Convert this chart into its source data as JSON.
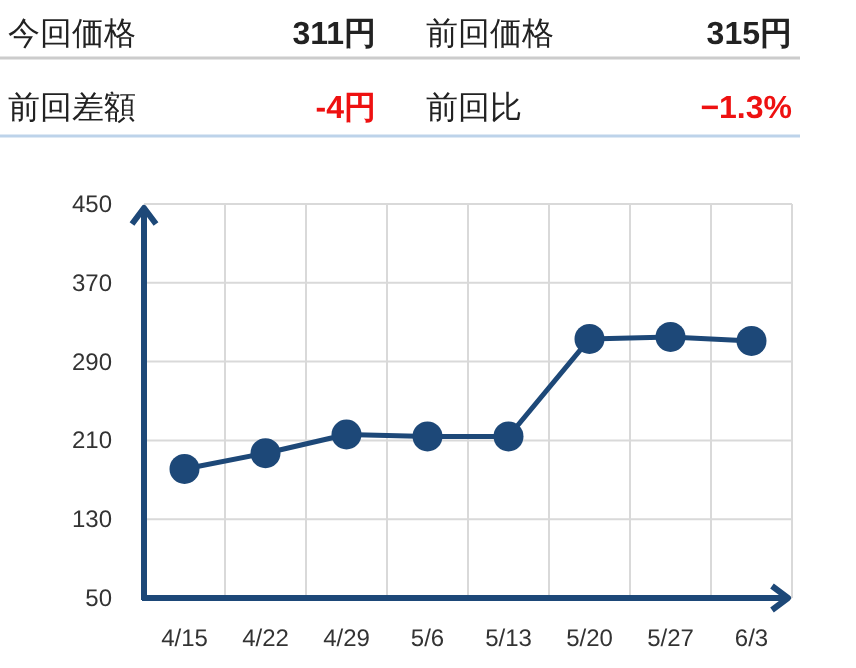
{
  "chart_data": [
    {
      "type": "other",
      "annotations": [
        "今回価格",
        "311円",
        "前回価格",
        "315円",
        "前回差額",
        "-4円",
        "前回比",
        "−1.3%"
      ]
    },
    {
      "type": "line",
      "categories": [
        "4/15",
        "4/22",
        "4/29",
        "5/6",
        "5/13",
        "5/20",
        "5/27",
        "6/3"
      ],
      "series": [
        {
          "color": "#1d4878",
          "values": [
            181,
            197,
            216,
            214,
            214,
            313,
            315,
            311
          ]
        }
      ],
      "ylim": [
        50,
        450
      ],
      "yticks": [
        50,
        130,
        210,
        290,
        370,
        450
      ],
      "grid": true,
      "marker": "circle",
      "line_style": "solid"
    }
  ]
}
